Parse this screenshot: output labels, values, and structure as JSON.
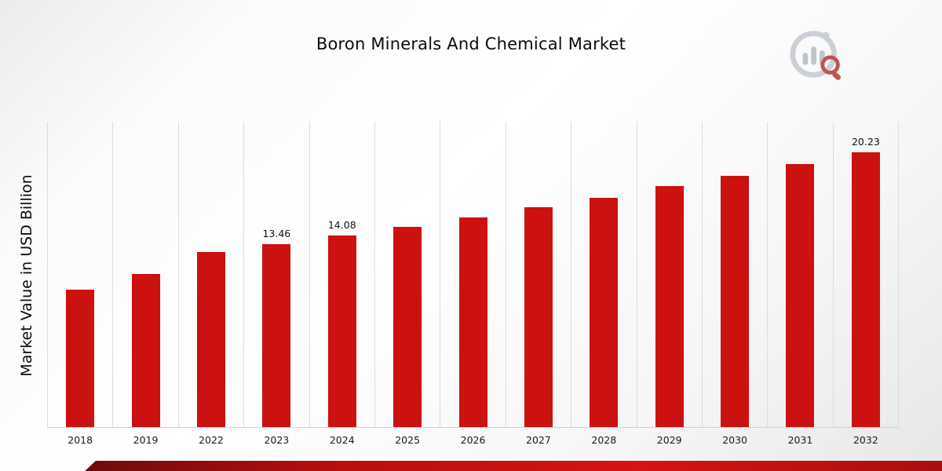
{
  "title": "Boron Minerals And Chemical Market",
  "ylabel": "Market Value in USD Billion",
  "colors": {
    "bar": "#cc1111",
    "gridline": "#dcdcdc",
    "bottom_strip": "#b80f0f",
    "text": "#0b0b0b"
  },
  "logo": {
    "name": "brand-logo"
  },
  "chart_data": {
    "type": "bar",
    "title": "Boron Minerals And Chemical Market",
    "xlabel": "",
    "ylabel": "Market Value in USD Billion",
    "categories": [
      "2018",
      "2019",
      "2022",
      "2023",
      "2024",
      "2025",
      "2026",
      "2027",
      "2028",
      "2029",
      "2030",
      "2031",
      "2032"
    ],
    "values": [
      10.11,
      11.25,
      12.88,
      13.46,
      14.08,
      14.73,
      15.42,
      16.17,
      16.88,
      17.73,
      18.49,
      19.35,
      20.23
    ],
    "data_labels": [
      null,
      null,
      null,
      "13.46",
      "14.08",
      null,
      null,
      null,
      null,
      null,
      null,
      null,
      "20.23"
    ],
    "unit": "USD Billion",
    "ylim": [
      0,
      22.55
    ],
    "grid": "vertical-only",
    "legend": "none",
    "bar_color": "#cc1111"
  }
}
